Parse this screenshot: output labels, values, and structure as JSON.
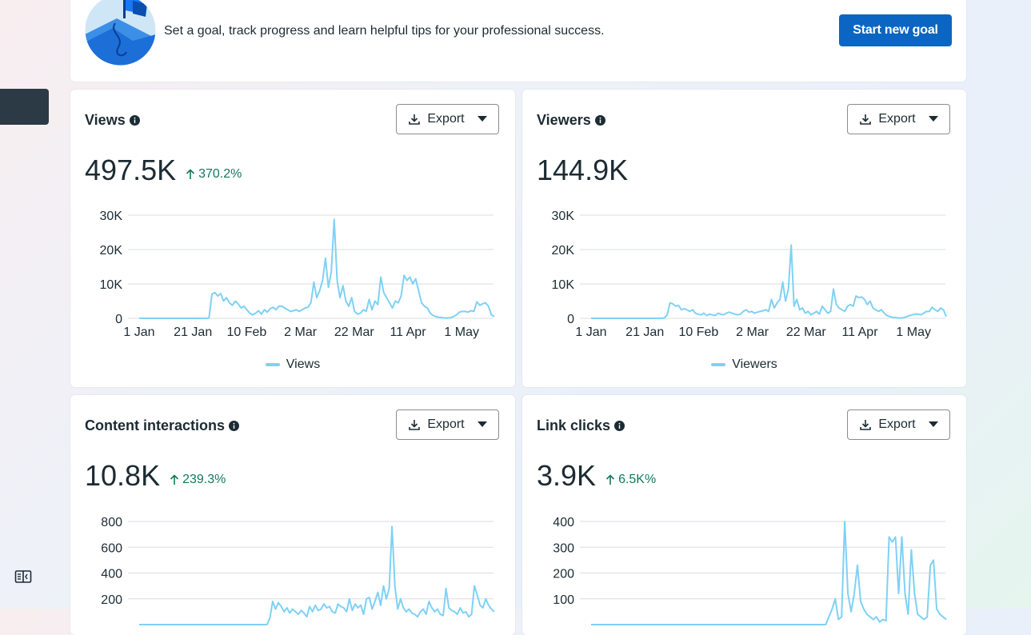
{
  "goal": {
    "text": "Set a goal, track progress and learn helpful tips for your professional success.",
    "button_label": "Start new goal"
  },
  "cards": [
    {
      "title": "Views",
      "export_label": "Export",
      "total": "497.5K",
      "delta": "370.2%",
      "legend": "Views",
      "chart_data": {
        "type": "line",
        "series": [
          {
            "name": "Views",
            "values": [
              0,
              0,
              0,
              0,
              0,
              0,
              0,
              0,
              0,
              0,
              0,
              0,
              0,
              0,
              0,
              0,
              0,
              0,
              0,
              0,
              0,
              0,
              0,
              0,
              100,
              7000,
              7500,
              6500,
              7200,
              5000,
              6000,
              4500,
              3800,
              5000,
              4200,
              3000,
              3500,
              2500,
              1500,
              1000,
              1500,
              2200,
              1200,
              2500,
              1800,
              2800,
              3200,
              2500,
              3500,
              3500,
              3000,
              2500,
              2000,
              2200,
              2500,
              2000,
              2500,
              3000,
              3200,
              4500,
              10500,
              6000,
              8000,
              11000,
              17500,
              9000,
              13500,
              28800,
              11000,
              6000,
              9500,
              5000,
              3500,
              6000,
              2000,
              1200,
              1500,
              2500,
              2000,
              5500,
              2500,
              5000,
              4000,
              12000,
              7500,
              6000,
              4500,
              3000,
              5000,
              4500,
              6500,
              12500,
              11000,
              12000,
              10000,
              11500,
              8000,
              4500,
              3500,
              3000,
              1500,
              800,
              500,
              300,
              200,
              100,
              100,
              200,
              500,
              1000,
              1800,
              2000,
              2000,
              1800,
              2200,
              2000,
              4800,
              3800,
              4200,
              4500,
              3500,
              1000,
              500
            ]
          }
        ],
        "x_ticks": [
          "1 Jan",
          "21 Jan",
          "10 Feb",
          "2 Mar",
          "22 Mar",
          "11 Apr",
          "1 May"
        ],
        "y_ticks": [
          "0",
          "10K",
          "20K",
          "30K"
        ],
        "ylim": [
          0,
          30000
        ]
      }
    },
    {
      "title": "Viewers",
      "export_label": "Export",
      "total": "144.9K",
      "delta": "",
      "legend": "Viewers",
      "chart_data": {
        "type": "line",
        "series": [
          {
            "name": "Viewers",
            "values": [
              0,
              0,
              0,
              0,
              0,
              0,
              0,
              0,
              0,
              0,
              0,
              0,
              0,
              0,
              0,
              0,
              0,
              0,
              0,
              0,
              0,
              0,
              0,
              0,
              0,
              0,
              100,
              1000,
              4500,
              4200,
              3500,
              3800,
              2500,
              2800,
              2500,
              2000,
              2500,
              1500,
              1200,
              1000,
              1500,
              800,
              1200,
              1000,
              800,
              1500,
              1200,
              1000,
              1500,
              1800,
              1500,
              1200,
              1000,
              1200,
              2000,
              2500,
              1800,
              2000,
              1500,
              1800,
              2000,
              2200,
              2500,
              2000,
              5500,
              3000,
              4500,
              5500,
              10500,
              5000,
              8500,
              21300,
              3500,
              5500,
              2500,
              3000,
              1500,
              2000,
              1000,
              1500,
              2000,
              1200,
              3500,
              2500,
              1500,
              2000,
              8500,
              4000,
              3000,
              2500,
              2000,
              3500,
              4000,
              3500,
              6500,
              6000,
              6200,
              5500,
              4000,
              5000,
              3000,
              2500,
              2000,
              2500,
              1500,
              800,
              500,
              300,
              200,
              100,
              100,
              200,
              500,
              800,
              1000,
              1200,
              1200,
              1000,
              1500,
              2000,
              2000,
              3200,
              2500,
              2000,
              3000,
              2500,
              500
            ]
          }
        ],
        "x_ticks": [
          "1 Jan",
          "21 Jan",
          "10 Feb",
          "2 Mar",
          "22 Mar",
          "11 Apr",
          "1 May"
        ],
        "y_ticks": [
          "0",
          "10K",
          "20K",
          "30K"
        ],
        "ylim": [
          0,
          30000
        ]
      }
    },
    {
      "title": "Content interactions",
      "export_label": "Export",
      "total": "10.8K",
      "delta": "239.3%",
      "legend": "",
      "chart_data": {
        "type": "line",
        "series": [
          {
            "name": "",
            "values": [
              0,
              0,
              0,
              0,
              0,
              0,
              0,
              0,
              0,
              0,
              0,
              0,
              0,
              0,
              0,
              0,
              0,
              0,
              0,
              0,
              0,
              0,
              0,
              0,
              0,
              0,
              0,
              0,
              0,
              0,
              0,
              0,
              0,
              0,
              0,
              0,
              0,
              0,
              0,
              0,
              0,
              0,
              0,
              0,
              0,
              0,
              50,
              180,
              120,
              170,
              140,
              100,
              130,
              90,
              120,
              100,
              80,
              110,
              90,
              60,
              140,
              100,
              150,
              110,
              120,
              160,
              130,
              140,
              100,
              90,
              160,
              140,
              130,
              100,
              200,
              110,
              160,
              130,
              150,
              80,
              200,
              210,
              120,
              180,
              250,
              150,
              300,
              200,
              280,
              760,
              300,
              120,
              200,
              130,
              100,
              120,
              90,
              80,
              60,
              100,
              120,
              80,
              180,
              130,
              100,
              120,
              80,
              70,
              280,
              130,
              110,
              100,
              80,
              130,
              90,
              100,
              60,
              80,
              300,
              230,
              150,
              130,
              200,
              150,
              120,
              100
            ]
          }
        ],
        "y_ticks": [
          "200",
          "400",
          "600",
          "800"
        ],
        "ylim": [
          0,
          800
        ]
      }
    },
    {
      "title": "Link clicks",
      "export_label": "Export",
      "total": "3.9K",
      "delta": "6.5K%",
      "legend": "",
      "chart_data": {
        "type": "line",
        "series": [
          {
            "name": "",
            "values": [
              0,
              0,
              0,
              0,
              0,
              0,
              0,
              0,
              0,
              0,
              0,
              0,
              0,
              0,
              0,
              0,
              0,
              0,
              0,
              0,
              0,
              0,
              0,
              0,
              0,
              0,
              0,
              0,
              0,
              0,
              0,
              0,
              0,
              0,
              0,
              0,
              0,
              0,
              0,
              0,
              0,
              0,
              0,
              0,
              0,
              0,
              0,
              0,
              0,
              0,
              0,
              0,
              0,
              0,
              0,
              0,
              0,
              0,
              0,
              0,
              0,
              0,
              0,
              0,
              0,
              0,
              0,
              0,
              0,
              0,
              0,
              0,
              0,
              0,
              0,
              30,
              60,
              100,
              20,
              30,
              400,
              120,
              50,
              120,
              230,
              90,
              60,
              40,
              30,
              20,
              30,
              10,
              20,
              15,
              340,
              320,
              340,
              120,
              340,
              120,
              40,
              290,
              120,
              40,
              30,
              20,
              30,
              230,
              250,
              60,
              40,
              30,
              20
            ]
          }
        ],
        "y_ticks": [
          "100",
          "200",
          "300",
          "400"
        ],
        "ylim": [
          0,
          400
        ]
      }
    }
  ]
}
